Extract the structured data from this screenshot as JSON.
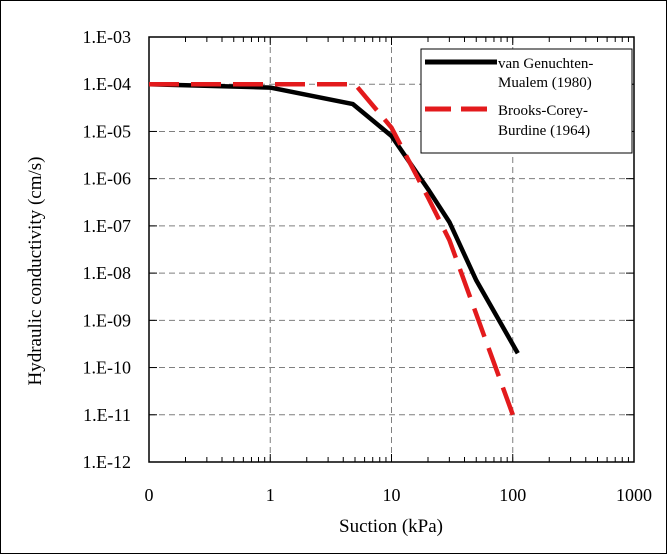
{
  "chart_data": {
    "type": "line",
    "title": "",
    "xlabel": "Suction (kPa)",
    "ylabel": "Hydraulic conductivity (cm/s)",
    "x_scale": "log",
    "y_scale": "log",
    "xlim": [
      0.1,
      1000
    ],
    "ylim": [
      1e-12,
      0.001
    ],
    "grid": true,
    "legend_position": "top-right",
    "x_tick_labels": [
      "0",
      "1",
      "10",
      "100",
      "1000"
    ],
    "y_tick_labels": [
      "1.E-03",
      "1.E-04",
      "1.E-05",
      "1.E-06",
      "1.E-07",
      "1.E-08",
      "1.E-09",
      "1.E-10",
      "1.E-11",
      "1.E-12"
    ],
    "series": [
      {
        "name": "van Genuchten-\nMualem (1980)",
        "color": "#000000",
        "style": "solid",
        "x": [
          0.1,
          1,
          4.8,
          10,
          20,
          30,
          50,
          110
        ],
        "y": [
          0.0001,
          8.5e-05,
          3.8e-05,
          8e-06,
          6e-07,
          1.2e-07,
          7e-09,
          2e-10
        ]
      },
      {
        "name": "Brooks-Corey-\nBurdine (1964)",
        "color": "#e31a1c",
        "style": "dashed",
        "x": [
          0.1,
          5,
          10,
          20,
          30,
          100
        ],
        "y": [
          0.0001,
          0.0001,
          1.2e-05,
          4e-07,
          5e-08,
          1e-11
        ]
      }
    ]
  }
}
